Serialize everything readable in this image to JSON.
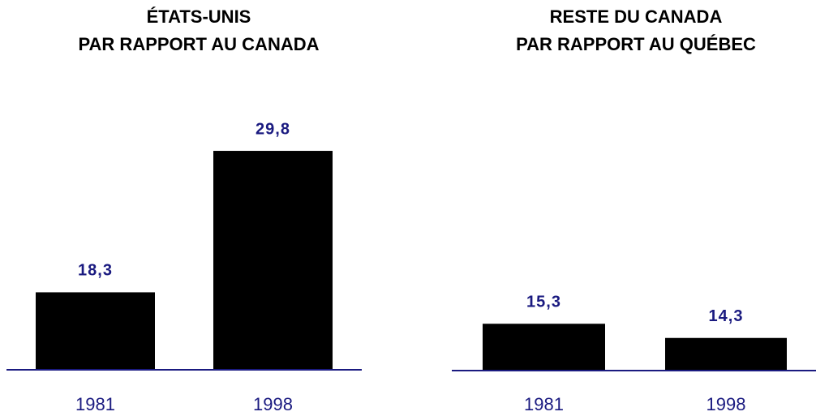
{
  "chart_data": [
    {
      "type": "bar",
      "title": [
        "ÉTATS-UNIS",
        "PAR RAPPORT AU CANADA"
      ],
      "categories": [
        "1981",
        "1998"
      ],
      "values": [
        18.3,
        29.8
      ],
      "value_labels": [
        "18,3",
        "29,8"
      ],
      "color": "#000000",
      "ylim": [
        12,
        30
      ]
    },
    {
      "type": "bar",
      "title": [
        "RESTE DU CANADA",
        "PAR RAPPORT AU QUÉBEC"
      ],
      "categories": [
        "1981",
        "1998"
      ],
      "values": [
        15.3,
        14.3
      ],
      "value_labels": [
        "15,3",
        "14,3"
      ],
      "color": "#000000",
      "ylim": [
        12,
        16
      ]
    }
  ]
}
